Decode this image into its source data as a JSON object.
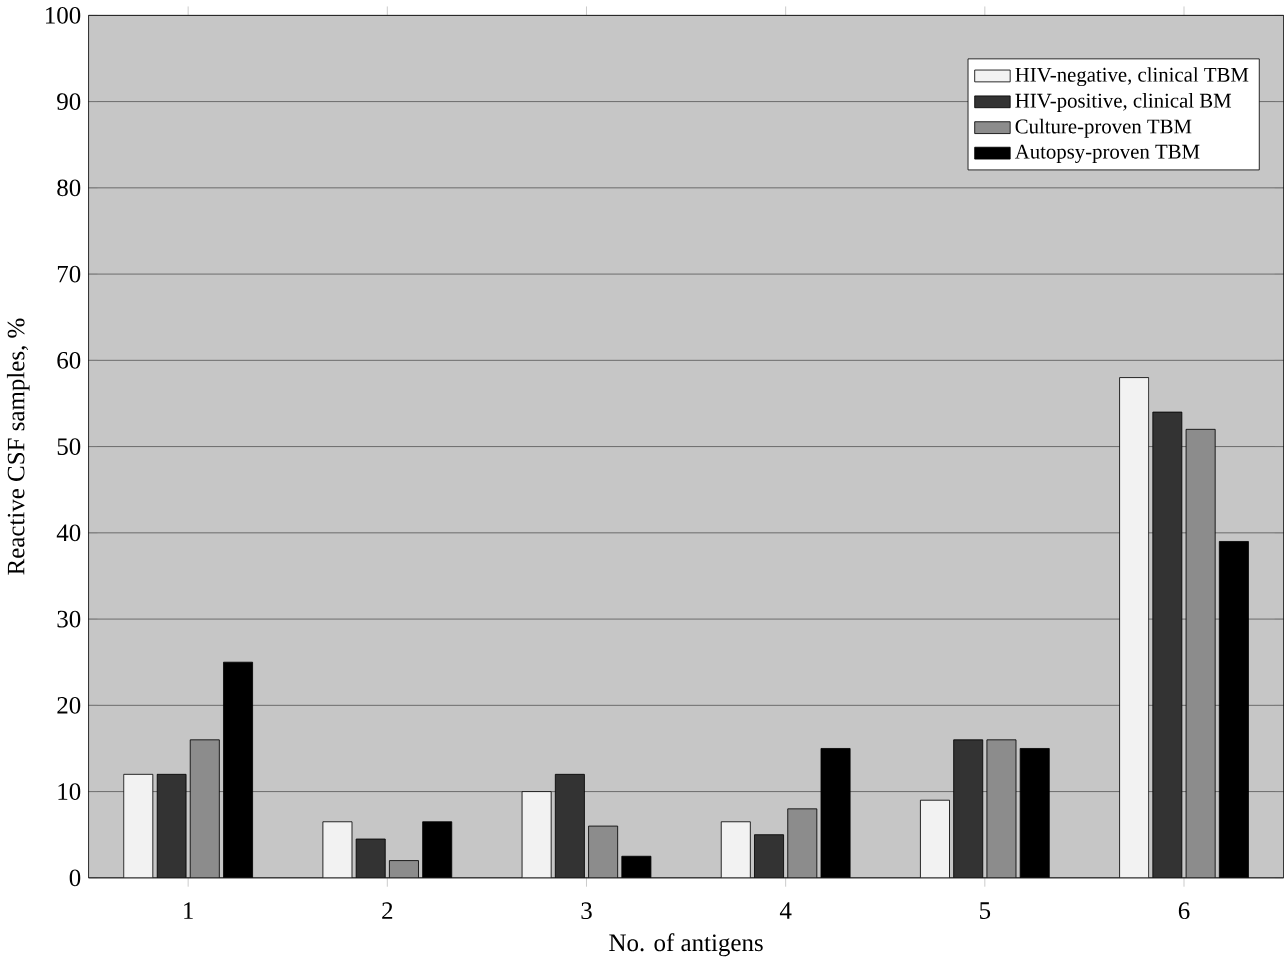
{
  "chart_data": {
    "type": "bar",
    "xlabel": "No. of antigens",
    "ylabel": "Reactive CSF samples, %",
    "categories": [
      "1",
      "2",
      "3",
      "4",
      "5",
      "6"
    ],
    "series": [
      {
        "name": "HIV-negative, clinical TBM",
        "color": "#f2f2f2",
        "values": [
          12,
          6.5,
          10,
          6.5,
          9,
          58
        ]
      },
      {
        "name": "HIV-positive, clinical BM",
        "color": "#333333",
        "values": [
          12,
          4.5,
          12,
          5,
          16,
          54
        ]
      },
      {
        "name": "Culture-proven TBM",
        "color": "#8c8c8c",
        "values": [
          16,
          2,
          6,
          8,
          16,
          52
        ]
      },
      {
        "name": "Autopsy-proven TBM",
        "color": "#000000",
        "values": [
          25,
          6.5,
          2.5,
          15,
          15,
          39
        ]
      }
    ],
    "ylim": [
      0,
      100
    ],
    "yticks": [
      0,
      10,
      20,
      30,
      40,
      50,
      60,
      70,
      80,
      90,
      100
    ],
    "grid": "y",
    "legend": "top right"
  }
}
